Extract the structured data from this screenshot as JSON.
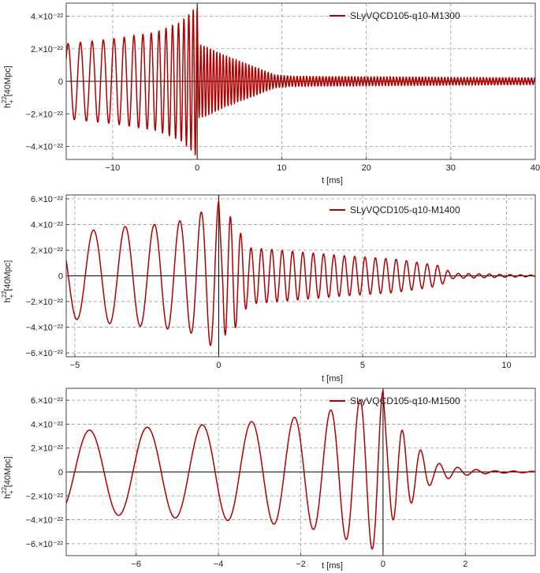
{
  "accent": "#b00000",
  "chart_data": [
    {
      "type": "line",
      "title": "",
      "xlabel": "t [ms]",
      "ylabel": "h_+^22[40Mpc]",
      "ylabel_main": "h",
      "ylabel_sup": "22",
      "ylabel_sub": "+",
      "ylabel_rest": "[40Mpc]",
      "xlim": [
        -15.5,
        40
      ],
      "ylim": [
        -4.8,
        4.8
      ],
      "x_ticks": [
        -10,
        0,
        10,
        20,
        30,
        40
      ],
      "x_tick_labels": [
        "−10",
        "0",
        "10",
        "20",
        "30",
        "40"
      ],
      "y_ticks": [
        -4,
        -2,
        0,
        2,
        4
      ],
      "y_tick_labels": [
        "−4.×10⁻²²",
        "−2.×10⁻²²",
        "0",
        "2.×10⁻²²",
        "4.×10⁻²²"
      ],
      "y_unit": "1e-22",
      "grid": true,
      "legend_position": "top-right",
      "series": [
        {
          "name": "SLyVQCD105-q10-M1300",
          "color": "#b00000",
          "inspiral_amplitude_points": [
            [
              -15.5,
              2.3
            ],
            [
              -10,
              2.6
            ],
            [
              -5,
              3.0
            ],
            [
              -2,
              3.6
            ],
            [
              -0.2,
              4.5
            ]
          ],
          "inspiral_period_points": [
            [
              -15.5,
              1.5
            ],
            [
              -8,
              1.15
            ],
            [
              -3,
              0.75
            ],
            [
              0,
              0.45
            ]
          ],
          "postmerger_amplitude_points": [
            [
              0.5,
              2.2
            ],
            [
              3,
              1.6
            ],
            [
              6,
              1.0
            ],
            [
              9,
              0.4
            ],
            [
              11,
              0.3
            ],
            [
              40,
              0.2
            ]
          ],
          "postmerger_period_ms": 0.38,
          "peak_min": -4.5,
          "peak_max": 4.6
        }
      ]
    },
    {
      "type": "line",
      "title": "",
      "xlabel": "t [ms]",
      "ylabel": "h_+^22[40Mpc]",
      "ylabel_main": "h",
      "ylabel_sup": "22",
      "ylabel_sub": "+",
      "ylabel_rest": "[40Mpc]",
      "xlim": [
        -5.3,
        11
      ],
      "ylim": [
        -6.3,
        6.3
      ],
      "x_ticks": [
        -5,
        0,
        5,
        10
      ],
      "x_tick_labels": [
        "−5",
        "0",
        "5",
        "10"
      ],
      "y_ticks": [
        -6,
        -4,
        -2,
        0,
        2,
        4,
        6
      ],
      "y_tick_labels": [
        "−6.×10⁻²²",
        "−4.×10⁻²²",
        "−2.×10⁻²²",
        "0",
        "2.×10⁻²²",
        "4.×10⁻²²",
        "6.×10⁻²²"
      ],
      "y_unit": "1e-22",
      "grid": true,
      "legend_position": "top-right",
      "series": [
        {
          "name": "SLyVQCD105-q10-M1400",
          "color": "#b00000",
          "inspiral_amplitude_points": [
            [
              -5.3,
              3.3
            ],
            [
              -3.5,
              3.8
            ],
            [
              -2.2,
              4.0
            ],
            [
              -1,
              4.4
            ],
            [
              -0.3,
              5.4
            ],
            [
              0,
              5.8
            ]
          ],
          "inspiral_period_points": [
            [
              -5.3,
              1.2
            ],
            [
              -3,
              1.05
            ],
            [
              -1.5,
              0.85
            ],
            [
              0,
              0.55
            ]
          ],
          "postmerger_amplitude_points": [
            [
              0.3,
              4.6
            ],
            [
              0.9,
              2.2
            ],
            [
              2,
              2.0
            ],
            [
              4,
              1.6
            ],
            [
              6,
              1.3
            ],
            [
              7.5,
              0.8
            ],
            [
              8,
              0.2
            ],
            [
              11,
              0.05
            ]
          ],
          "postmerger_period_ms": 0.36,
          "peak_min": -5.8,
          "peak_max": 5.4
        }
      ]
    },
    {
      "type": "line",
      "title": "",
      "xlabel": "t [ms]",
      "ylabel": "h_+^22[40Mpc]",
      "ylabel_main": "h",
      "ylabel_sup": "22",
      "ylabel_sub": "+",
      "ylabel_rest": "[40Mpc]",
      "xlim": [
        -7.7,
        3.7
      ],
      "ylim": [
        -7.0,
        7.0
      ],
      "x_ticks": [
        -6,
        -4,
        -2,
        0,
        2
      ],
      "x_tick_labels": [
        "−6",
        "−4",
        "−2",
        "0",
        "2"
      ],
      "y_ticks": [
        -6,
        -4,
        -2,
        0,
        2,
        4,
        6
      ],
      "y_tick_labels": [
        "−6.×10⁻²²",
        "−4.×10⁻²²",
        "−2.×10⁻²²",
        "0",
        "2.×10⁻²²",
        "4.×10⁻²²",
        "6.×10⁻²²"
      ],
      "y_unit": "1e-22",
      "grid": true,
      "legend_position": "top-right",
      "series": [
        {
          "name": "SLyVQCD105-q10-M1500",
          "color": "#b00000",
          "inspiral_amplitude_points": [
            [
              -7.7,
              3.4
            ],
            [
              -6,
              3.7
            ],
            [
              -4,
              4.0
            ],
            [
              -2.5,
              4.4
            ],
            [
              -1.5,
              4.9
            ],
            [
              -0.6,
              6.0
            ],
            [
              0,
              6.8
            ]
          ],
          "inspiral_period_points": [
            [
              -7.7,
              1.45
            ],
            [
              -5,
              1.35
            ],
            [
              -3,
              1.1
            ],
            [
              -1.5,
              0.85
            ],
            [
              0,
              0.5
            ]
          ],
          "postmerger_amplitude_points": [
            [
              0.2,
              4.0
            ],
            [
              0.6,
              2.4
            ],
            [
              1.1,
              0.8
            ],
            [
              1.8,
              0.3
            ],
            [
              2.5,
              0.1
            ],
            [
              3.7,
              0.05
            ]
          ],
          "postmerger_period_ms": 0.45,
          "peak_min": -6.4,
          "peak_max": 6.8
        }
      ]
    }
  ]
}
